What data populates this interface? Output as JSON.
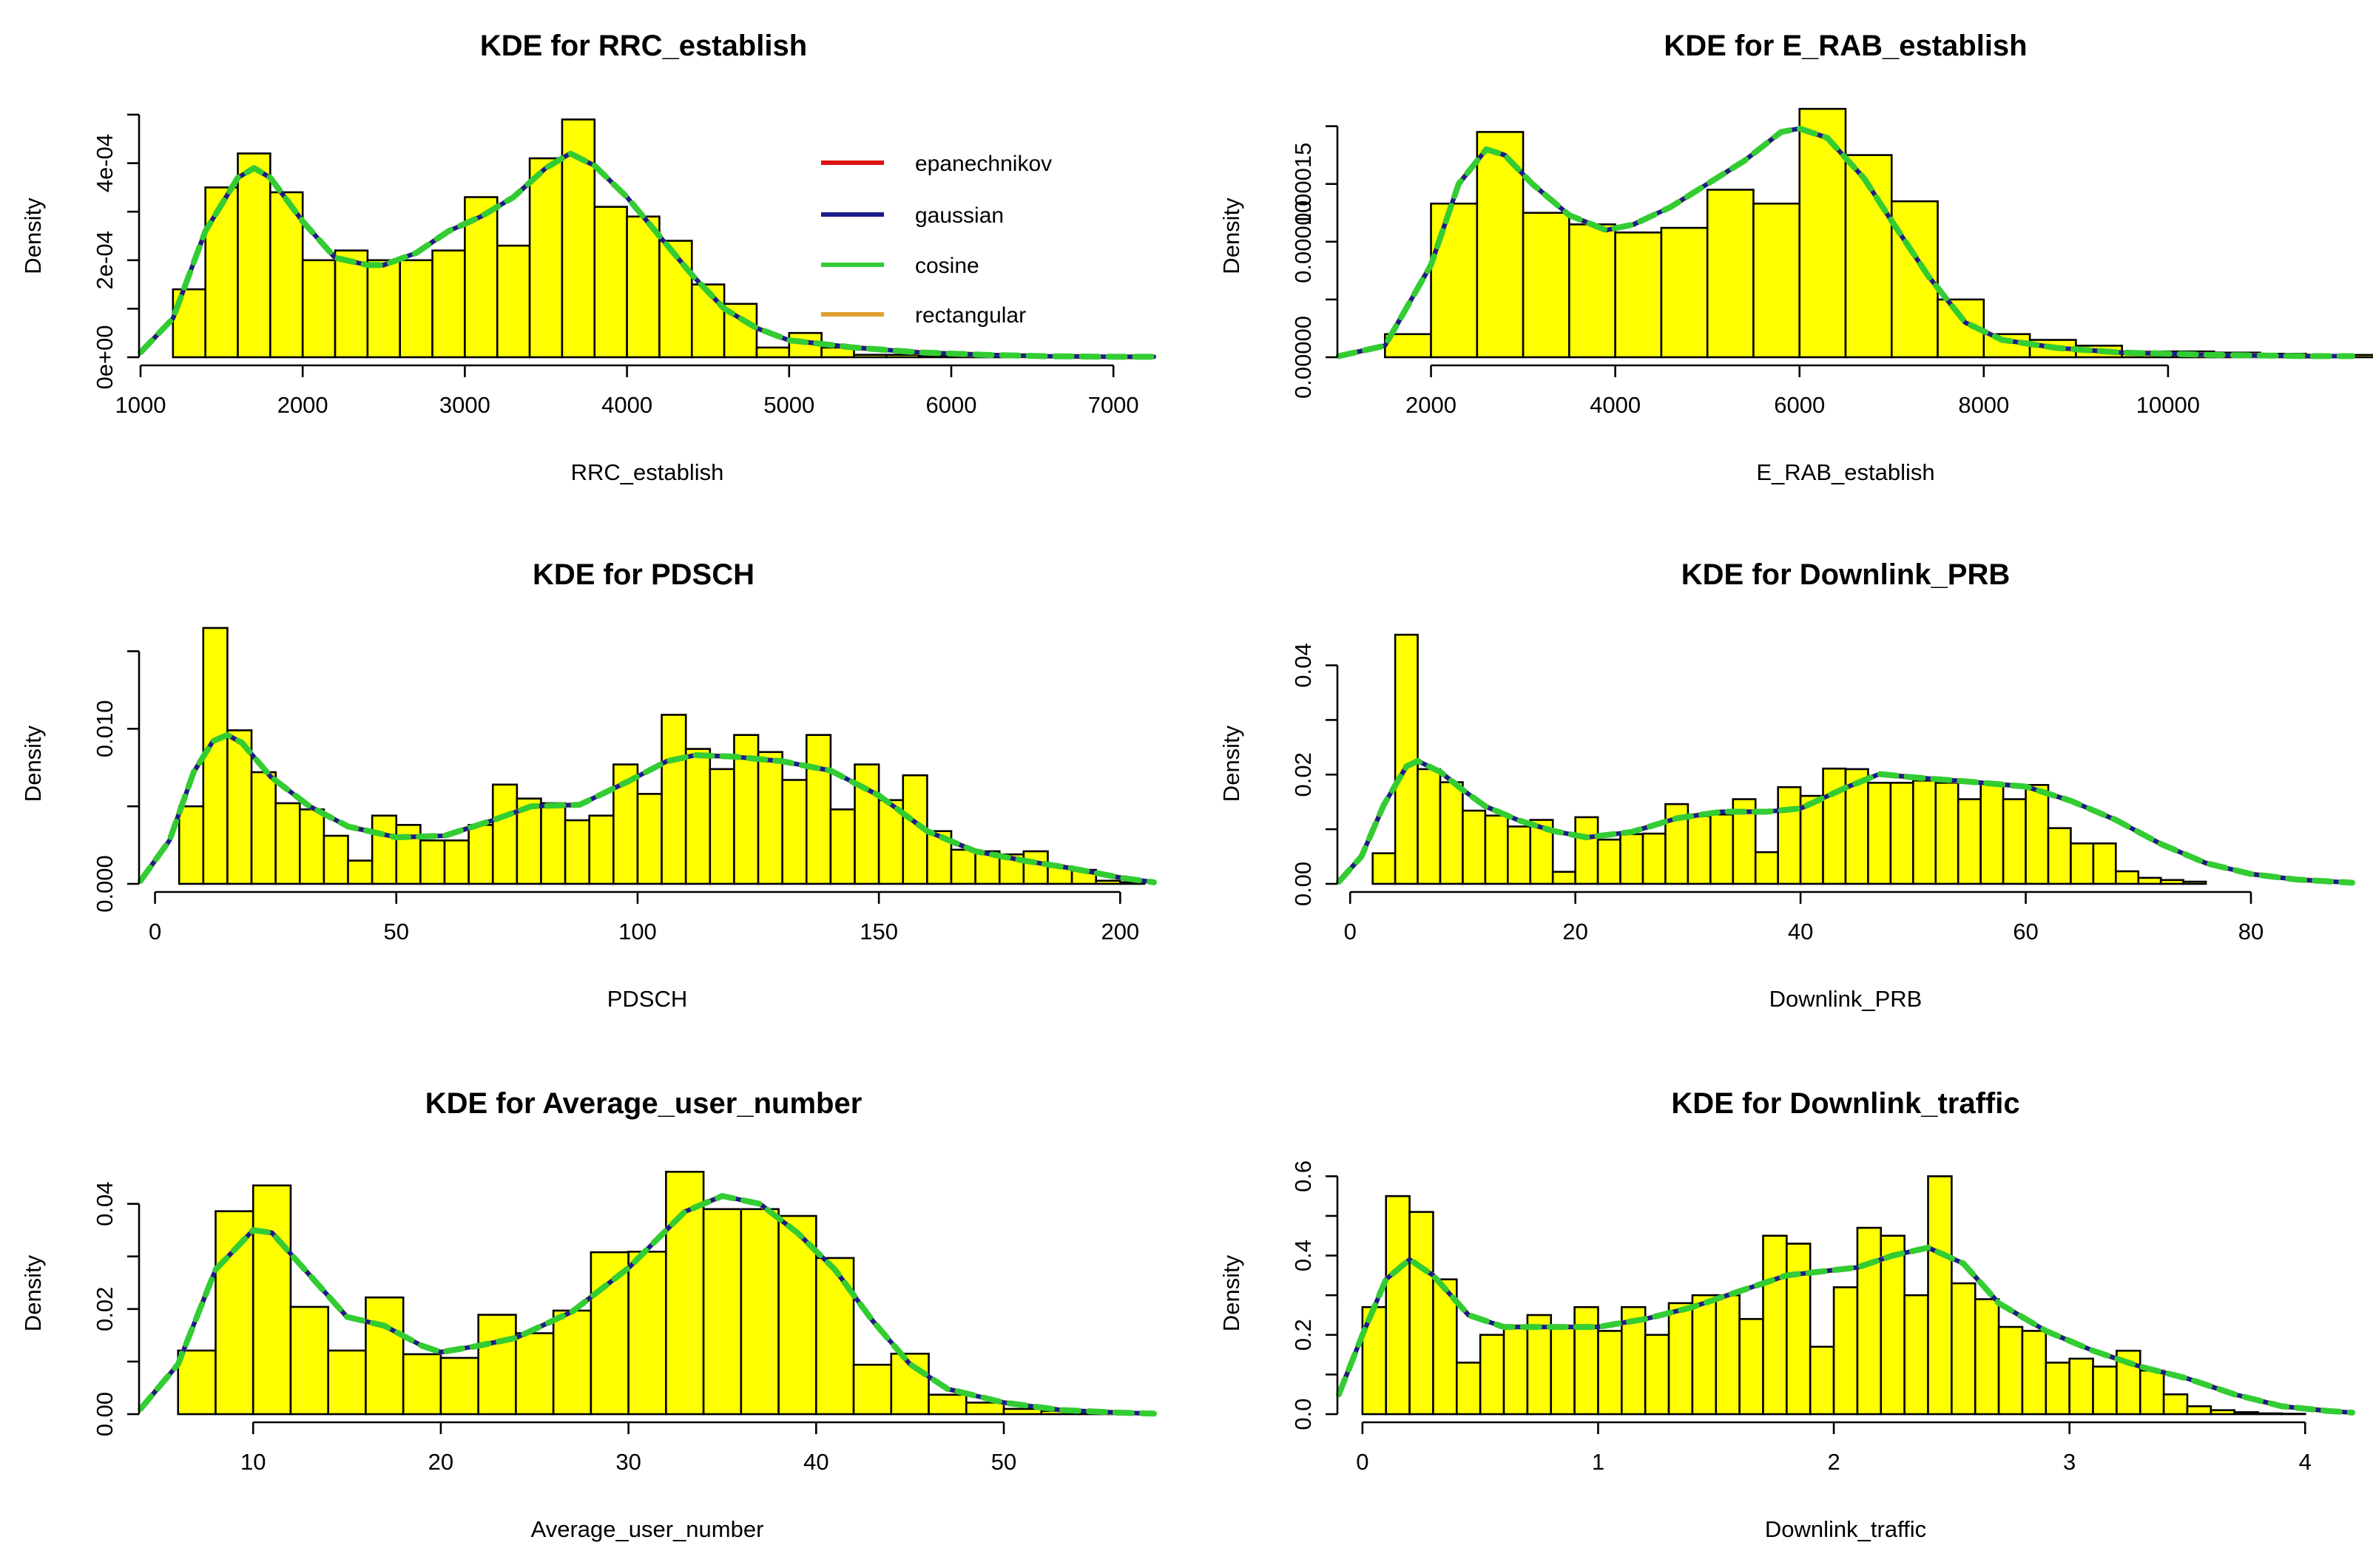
{
  "figure": {
    "colors": {
      "bar_fill": "#FFFF00",
      "bar_border": "#000000",
      "background": "#FFFFFF"
    },
    "legend": {
      "entries": [
        {
          "label": "epanechnikov",
          "color": "#DD1111"
        },
        {
          "label": "gaussian",
          "color": "#1A1A8C"
        },
        {
          "label": "cosine",
          "color": "#33CC33"
        },
        {
          "label": "rectangular",
          "color": "#E0A030"
        }
      ]
    }
  },
  "chart_data": [
    {
      "type": "bar",
      "title": "KDE for RRC_establish",
      "xlabel": "RRC_establish",
      "ylabel": "Density",
      "xlim": [
        1000,
        7250
      ],
      "ylim": [
        0,
        0.0005
      ],
      "xticks": [
        1000,
        2000,
        3000,
        4000,
        5000,
        6000,
        7000
      ],
      "xtick_labels": [
        "1000",
        "2000",
        "3000",
        "4000",
        "5000",
        "6000",
        "7000"
      ],
      "yticks": [
        0,
        0.0002,
        0.0004
      ],
      "ytick_labels": [
        "0e+00",
        "2e-04",
        "4e-04"
      ],
      "y_minor_ticks": [
        0.0001,
        0.0003,
        0.0005
      ],
      "bin_start": 1200,
      "bin_width": 200,
      "bin_values": [
        0.00014,
        0.00035,
        0.00042,
        0.00034,
        0.0002,
        0.00022,
        0.0002,
        0.0002,
        0.00022,
        0.00033,
        0.00023,
        0.00041,
        0.00049,
        0.00031,
        0.00029,
        0.00024,
        0.00015,
        0.00011,
        2e-05,
        5e-05,
        2e-05,
        5e-06,
        5e-06,
        4e-06,
        4e-06,
        3e-06,
        2e-06,
        2e-06,
        1e-06,
        1e-06
      ],
      "kde_x": [
        1000,
        1200,
        1400,
        1600,
        1700,
        1800,
        2000,
        2200,
        2400,
        2500,
        2700,
        2900,
        3100,
        3300,
        3500,
        3650,
        3800,
        4000,
        4200,
        4400,
        4600,
        4800,
        5000,
        5400,
        5800,
        6200,
        6600,
        7000,
        7250
      ],
      "kde_y": [
        1e-05,
        8e-05,
        0.00026,
        0.00037,
        0.00039,
        0.00037,
        0.00028,
        0.000205,
        0.00019,
        0.00019,
        0.000215,
        0.00026,
        0.00029,
        0.00033,
        0.00039,
        0.00042,
        0.000395,
        0.00033,
        0.00025,
        0.00017,
        0.0001,
        6e-05,
        3.5e-05,
        2e-05,
        1e-05,
        5e-06,
        2e-06,
        1e-06,
        1e-06
      ],
      "legend_position": "top-right"
    },
    {
      "type": "bar",
      "title": "KDE for E_RAB_establish",
      "xlabel": "E_RAB_establish",
      "ylabel": "Density",
      "xlim": [
        1000,
        12000
      ],
      "ylim": [
        0,
        0.00021
      ],
      "xticks": [
        2000,
        4000,
        6000,
        8000,
        10000
      ],
      "xtick_labels": [
        "2000",
        "4000",
        "6000",
        "8000",
        "10000"
      ],
      "yticks": [
        0,
        5e-05,
        0.0001,
        0.00015
      ],
      "ytick_labels": [
        "0.00000",
        "",
        "0.00010",
        "0.00015"
      ],
      "y_minor_ticks": [
        0.0002
      ],
      "bin_start": 1500,
      "bin_width": 500,
      "bin_values": [
        2e-05,
        0.000133,
        0.000195,
        0.000125,
        0.000115,
        0.000108,
        0.000112,
        0.000145,
        0.000133,
        0.000215,
        0.000175,
        0.000135,
        5e-05,
        2e-05,
        1.5e-05,
        1e-05,
        5e-06,
        5e-06,
        4e-06,
        3e-06,
        2e-06,
        2e-06,
        1e-06
      ],
      "kde_x": [
        1000,
        1500,
        2000,
        2300,
        2600,
        2800,
        3100,
        3500,
        3900,
        4200,
        4600,
        5000,
        5400,
        5800,
        6000,
        6300,
        6700,
        7000,
        7400,
        7800,
        8200,
        8800,
        9500,
        10500,
        11500,
        12000
      ],
      "kde_y": [
        1e-06,
        1e-05,
        8e-05,
        0.00015,
        0.00018,
        0.000175,
        0.00015,
        0.000123,
        0.00011,
        0.000115,
        0.00013,
        0.00015,
        0.00017,
        0.000195,
        0.000198,
        0.00019,
        0.000155,
        0.000118,
        7e-05,
        3e-05,
        1.5e-05,
        8e-06,
        4e-06,
        2e-06,
        1e-06,
        1e-06
      ]
    },
    {
      "type": "bar",
      "title": "KDE for PDSCH",
      "xlabel": "PDSCH",
      "ylabel": "Density",
      "xlim": [
        -3,
        207
      ],
      "ylim": [
        0,
        0.0155
      ],
      "xticks": [
        0,
        50,
        100,
        150,
        200
      ],
      "xtick_labels": [
        "0",
        "50",
        "100",
        "150",
        "200"
      ],
      "yticks": [
        0,
        0.005,
        0.01
      ],
      "ytick_labels": [
        "0.000",
        "",
        "0.010"
      ],
      "y_minor_ticks": [
        0.015
      ],
      "bin_start": 5,
      "bin_width": 5,
      "bin_values": [
        0.005,
        0.0165,
        0.0099,
        0.0072,
        0.0052,
        0.0048,
        0.0031,
        0.0015,
        0.0044,
        0.0038,
        0.0028,
        0.0028,
        0.0038,
        0.0064,
        0.0055,
        0.0052,
        0.0041,
        0.0044,
        0.0077,
        0.0058,
        0.0109,
        0.0087,
        0.0074,
        0.0096,
        0.0085,
        0.0067,
        0.0096,
        0.0048,
        0.0077,
        0.0054,
        0.007,
        0.0034,
        0.0022,
        0.0021,
        0.0019,
        0.0021,
        0.0011,
        0.0009,
        0.0002,
        0.0001
      ],
      "kde_x": [
        -3,
        3,
        8,
        12,
        15,
        18,
        24,
        32,
        40,
        50,
        60,
        70,
        78,
        88,
        98,
        106,
        112,
        120,
        130,
        140,
        150,
        160,
        170,
        180,
        190,
        200,
        207
      ],
      "kde_y": [
        0.0002,
        0.0028,
        0.0072,
        0.0092,
        0.0096,
        0.0091,
        0.0069,
        0.005,
        0.0037,
        0.003,
        0.0031,
        0.0041,
        0.005,
        0.0051,
        0.0066,
        0.0079,
        0.0083,
        0.0082,
        0.0079,
        0.0073,
        0.0057,
        0.0034,
        0.0021,
        0.0015,
        0.001,
        0.0004,
        0.0001
      ]
    },
    {
      "type": "bar",
      "title": "KDE for Downlink_PRB",
      "xlabel": "Downlink_PRB",
      "ylabel": "Density",
      "xlim": [
        -1,
        89
      ],
      "ylim": [
        0,
        0.044
      ],
      "xticks": [
        0,
        20,
        40,
        60,
        80
      ],
      "xtick_labels": [
        "0",
        "20",
        "40",
        "60",
        "80"
      ],
      "yticks": [
        0,
        0.01,
        0.02,
        0.03,
        0.04
      ],
      "ytick_labels": [
        "0.00",
        "",
        "0.02",
        "",
        "0.04"
      ],
      "y_minor_ticks": [],
      "bin_start": 2,
      "bin_width": 2,
      "bin_values": [
        0.0056,
        0.0456,
        0.021,
        0.0186,
        0.0134,
        0.0125,
        0.0105,
        0.0117,
        0.0022,
        0.0122,
        0.0081,
        0.0091,
        0.0092,
        0.0146,
        0.0124,
        0.0127,
        0.0155,
        0.0058,
        0.0177,
        0.0161,
        0.0211,
        0.021,
        0.0185,
        0.0185,
        0.0189,
        0.0185,
        0.0155,
        0.0183,
        0.0155,
        0.0181,
        0.0102,
        0.0074,
        0.0074,
        0.0023,
        0.0011,
        0.0007,
        0.0004
      ],
      "kde_x": [
        -1,
        1,
        3,
        5,
        6,
        8,
        10,
        12,
        15,
        18,
        21,
        25,
        29,
        33,
        37,
        40,
        44,
        47,
        50,
        55,
        60,
        64,
        68,
        72,
        76,
        80,
        84,
        89
      ],
      "kde_y": [
        0.0004,
        0.005,
        0.0145,
        0.0215,
        0.0225,
        0.0205,
        0.0172,
        0.0142,
        0.0116,
        0.0097,
        0.0085,
        0.0095,
        0.012,
        0.0132,
        0.0132,
        0.0138,
        0.0176,
        0.0201,
        0.0195,
        0.0187,
        0.0178,
        0.0152,
        0.0117,
        0.0073,
        0.0038,
        0.0018,
        0.0008,
        0.0002
      ]
    },
    {
      "type": "bar",
      "title": "KDE for Average_user_number",
      "xlabel": "Average_user_number",
      "ylabel": "Density",
      "xlim": [
        4,
        58
      ],
      "ylim": [
        0,
        0.046
      ],
      "xticks": [
        10,
        20,
        30,
        40,
        50
      ],
      "xtick_labels": [
        "10",
        "20",
        "30",
        "40",
        "50"
      ],
      "yticks": [
        0,
        0.01,
        0.02,
        0.03,
        0.04
      ],
      "ytick_labels": [
        "0.00",
        "",
        "0.02",
        "",
        "0.04"
      ],
      "y_minor_ticks": [],
      "bin_start": 6,
      "bin_width": 2,
      "bin_values": [
        0.0121,
        0.0386,
        0.0435,
        0.0204,
        0.0121,
        0.0222,
        0.0114,
        0.0107,
        0.0189,
        0.0154,
        0.0197,
        0.0308,
        0.0309,
        0.0461,
        0.039,
        0.039,
        0.0377,
        0.0297,
        0.0094,
        0.0115,
        0.0037,
        0.0022,
        0.001,
        0.0006,
        0.0004,
        0.0002
      ],
      "kde_x": [
        4,
        6,
        8,
        10,
        11,
        13,
        15,
        17,
        19,
        20,
        22,
        24,
        27,
        30,
        33,
        35,
        37,
        39,
        41,
        43,
        45,
        47,
        50,
        53,
        56,
        58
      ],
      "kde_y": [
        0.001,
        0.0095,
        0.0275,
        0.035,
        0.0345,
        0.0265,
        0.0185,
        0.0168,
        0.013,
        0.0118,
        0.013,
        0.0145,
        0.0195,
        0.0278,
        0.0385,
        0.0415,
        0.04,
        0.0345,
        0.0275,
        0.0178,
        0.0095,
        0.0048,
        0.0022,
        0.0008,
        0.0003,
        0.0001
      ]
    },
    {
      "type": "bar",
      "title": "KDE for Downlink_traffic",
      "xlabel": "Downlink_traffic",
      "ylabel": "Density",
      "xlim": [
        -0.1,
        4.2
      ],
      "ylim": [
        0,
        0.61
      ],
      "xticks": [
        0,
        1,
        2,
        3,
        4
      ],
      "xtick_labels": [
        "0",
        "1",
        "2",
        "3",
        "4"
      ],
      "yticks": [
        0,
        0.2,
        0.4,
        0.6
      ],
      "ytick_labels": [
        "0.0",
        "0.2",
        "0.4",
        "0.6"
      ],
      "y_minor_ticks": [
        0.1,
        0.3,
        0.5
      ],
      "bin_start": 0,
      "bin_width": 0.1,
      "bin_values": [
        0.27,
        0.55,
        0.51,
        0.34,
        0.13,
        0.2,
        0.22,
        0.25,
        0.22,
        0.27,
        0.21,
        0.27,
        0.2,
        0.28,
        0.3,
        0.3,
        0.24,
        0.45,
        0.43,
        0.17,
        0.32,
        0.47,
        0.45,
        0.3,
        0.6,
        0.33,
        0.29,
        0.22,
        0.21,
        0.13,
        0.14,
        0.12,
        0.16,
        0.11,
        0.05,
        0.02,
        0.01,
        0.005,
        0.002,
        0.001
      ],
      "kde_x": [
        -0.1,
        0,
        0.1,
        0.2,
        0.3,
        0.45,
        0.6,
        0.8,
        1.0,
        1.2,
        1.4,
        1.6,
        1.8,
        1.95,
        2.1,
        2.25,
        2.4,
        2.55,
        2.7,
        2.9,
        3.1,
        3.3,
        3.5,
        3.7,
        3.9,
        4.1,
        4.2
      ],
      "kde_y": [
        0.05,
        0.2,
        0.34,
        0.39,
        0.35,
        0.25,
        0.22,
        0.22,
        0.22,
        0.24,
        0.27,
        0.31,
        0.35,
        0.36,
        0.37,
        0.4,
        0.42,
        0.38,
        0.28,
        0.21,
        0.16,
        0.12,
        0.09,
        0.05,
        0.02,
        0.008,
        0.004
      ]
    }
  ]
}
